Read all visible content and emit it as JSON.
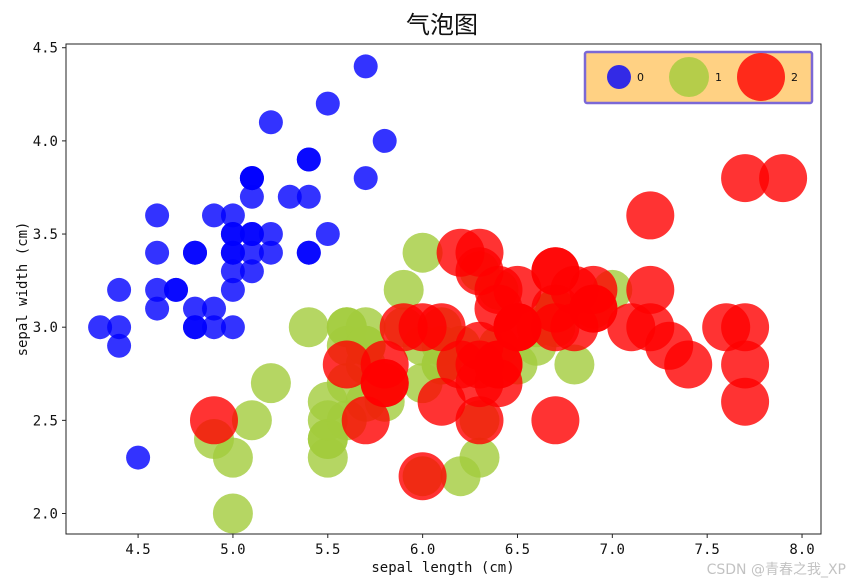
{
  "chart_data": {
    "type": "scatter",
    "title": "气泡图",
    "xlabel": "sepal length (cm)",
    "ylabel": "sepal width (cm)",
    "xlim": [
      4.12,
      8.1
    ],
    "ylim": [
      1.89,
      4.52
    ],
    "xticks": [
      "4.5",
      "5.0",
      "5.5",
      "6.0",
      "6.5",
      "7.0",
      "7.5",
      "8.0"
    ],
    "yticks": [
      "2.0",
      "2.5",
      "3.0",
      "3.5",
      "4.0",
      "4.5"
    ],
    "legend": {
      "position": "top-right",
      "background": "#ffd183",
      "border": "#7b68d6"
    },
    "series": [
      {
        "name": "0",
        "color": "#0000ff",
        "size": 1,
        "points": [
          [
            4.3,
            3.0
          ],
          [
            4.4,
            2.9
          ],
          [
            4.4,
            3.0
          ],
          [
            4.4,
            3.2
          ],
          [
            4.5,
            2.3
          ],
          [
            4.6,
            3.1
          ],
          [
            4.6,
            3.2
          ],
          [
            4.6,
            3.4
          ],
          [
            4.6,
            3.6
          ],
          [
            4.7,
            3.2
          ],
          [
            4.7,
            3.2
          ],
          [
            4.8,
            3.0
          ],
          [
            4.8,
            3.0
          ],
          [
            4.8,
            3.1
          ],
          [
            4.8,
            3.4
          ],
          [
            4.8,
            3.4
          ],
          [
            4.9,
            3.0
          ],
          [
            4.9,
            3.1
          ],
          [
            4.9,
            3.6
          ],
          [
            5.0,
            3.0
          ],
          [
            5.0,
            3.2
          ],
          [
            5.0,
            3.3
          ],
          [
            5.0,
            3.4
          ],
          [
            5.0,
            3.4
          ],
          [
            5.0,
            3.5
          ],
          [
            5.0,
            3.5
          ],
          [
            5.0,
            3.6
          ],
          [
            5.1,
            3.3
          ],
          [
            5.1,
            3.4
          ],
          [
            5.1,
            3.5
          ],
          [
            5.1,
            3.5
          ],
          [
            5.1,
            3.7
          ],
          [
            5.1,
            3.8
          ],
          [
            5.1,
            3.8
          ],
          [
            5.1,
            3.8
          ],
          [
            5.2,
            3.4
          ],
          [
            5.2,
            3.5
          ],
          [
            5.2,
            4.1
          ],
          [
            5.3,
            3.7
          ],
          [
            5.4,
            3.4
          ],
          [
            5.4,
            3.4
          ],
          [
            5.4,
            3.7
          ],
          [
            5.4,
            3.9
          ],
          [
            5.4,
            3.9
          ],
          [
            5.5,
            3.5
          ],
          [
            5.5,
            4.2
          ],
          [
            5.7,
            3.8
          ],
          [
            5.7,
            4.4
          ],
          [
            5.8,
            4.0
          ]
        ]
      },
      {
        "name": "1",
        "color": "#a3cc3c",
        "size": 2,
        "points": [
          [
            4.9,
            2.4
          ],
          [
            5.0,
            2.0
          ],
          [
            5.0,
            2.3
          ],
          [
            5.1,
            2.5
          ],
          [
            5.2,
            2.7
          ],
          [
            5.4,
            3.0
          ],
          [
            5.5,
            2.3
          ],
          [
            5.5,
            2.4
          ],
          [
            5.5,
            2.4
          ],
          [
            5.5,
            2.5
          ],
          [
            5.5,
            2.6
          ],
          [
            5.6,
            2.5
          ],
          [
            5.6,
            2.7
          ],
          [
            5.6,
            2.9
          ],
          [
            5.6,
            3.0
          ],
          [
            5.6,
            3.0
          ],
          [
            5.7,
            2.6
          ],
          [
            5.7,
            2.8
          ],
          [
            5.7,
            2.9
          ],
          [
            5.7,
            2.9
          ],
          [
            5.7,
            3.0
          ],
          [
            5.8,
            2.6
          ],
          [
            5.8,
            2.7
          ],
          [
            5.8,
            2.7
          ],
          [
            5.9,
            3.0
          ],
          [
            5.9,
            3.2
          ],
          [
            6.0,
            2.2
          ],
          [
            6.0,
            2.7
          ],
          [
            6.0,
            2.9
          ],
          [
            6.0,
            3.4
          ],
          [
            6.1,
            2.8
          ],
          [
            6.1,
            2.8
          ],
          [
            6.1,
            2.9
          ],
          [
            6.1,
            3.0
          ],
          [
            6.2,
            2.2
          ],
          [
            6.2,
            2.9
          ],
          [
            6.3,
            2.3
          ],
          [
            6.3,
            2.5
          ],
          [
            6.3,
            3.3
          ],
          [
            6.4,
            2.9
          ],
          [
            6.4,
            3.2
          ],
          [
            6.5,
            2.8
          ],
          [
            6.6,
            2.9
          ],
          [
            6.6,
            3.0
          ],
          [
            6.7,
            3.0
          ],
          [
            6.7,
            3.1
          ],
          [
            6.7,
            3.1
          ],
          [
            6.8,
            2.8
          ],
          [
            6.9,
            3.1
          ],
          [
            7.0,
            3.2
          ]
        ]
      },
      {
        "name": "2",
        "color": "#ff0000",
        "size": 3,
        "points": [
          [
            4.9,
            2.5
          ],
          [
            5.6,
            2.8
          ],
          [
            5.7,
            2.5
          ],
          [
            5.8,
            2.7
          ],
          [
            5.8,
            2.7
          ],
          [
            5.8,
            2.8
          ],
          [
            5.9,
            3.0
          ],
          [
            6.0,
            2.2
          ],
          [
            6.0,
            3.0
          ],
          [
            6.1,
            2.6
          ],
          [
            6.1,
            3.0
          ],
          [
            6.2,
            2.8
          ],
          [
            6.2,
            3.4
          ],
          [
            6.3,
            2.5
          ],
          [
            6.3,
            2.7
          ],
          [
            6.3,
            2.8
          ],
          [
            6.3,
            2.9
          ],
          [
            6.3,
            3.3
          ],
          [
            6.3,
            3.4
          ],
          [
            6.4,
            2.7
          ],
          [
            6.4,
            2.8
          ],
          [
            6.4,
            2.8
          ],
          [
            6.4,
            3.1
          ],
          [
            6.4,
            3.2
          ],
          [
            6.5,
            3.0
          ],
          [
            6.5,
            3.0
          ],
          [
            6.5,
            3.0
          ],
          [
            6.5,
            3.2
          ],
          [
            6.7,
            2.5
          ],
          [
            6.7,
            3.0
          ],
          [
            6.7,
            3.1
          ],
          [
            6.7,
            3.3
          ],
          [
            6.7,
            3.3
          ],
          [
            6.8,
            3.0
          ],
          [
            6.8,
            3.2
          ],
          [
            6.9,
            3.1
          ],
          [
            6.9,
            3.1
          ],
          [
            6.9,
            3.2
          ],
          [
            7.1,
            3.0
          ],
          [
            7.2,
            3.0
          ],
          [
            7.2,
            3.2
          ],
          [
            7.2,
            3.6
          ],
          [
            7.3,
            2.9
          ],
          [
            7.4,
            2.8
          ],
          [
            7.6,
            3.0
          ],
          [
            7.7,
            2.6
          ],
          [
            7.7,
            2.8
          ],
          [
            7.7,
            3.0
          ],
          [
            7.7,
            3.8
          ],
          [
            7.9,
            3.8
          ]
        ]
      }
    ]
  },
  "watermark": "CSDN @青春之我_XP"
}
